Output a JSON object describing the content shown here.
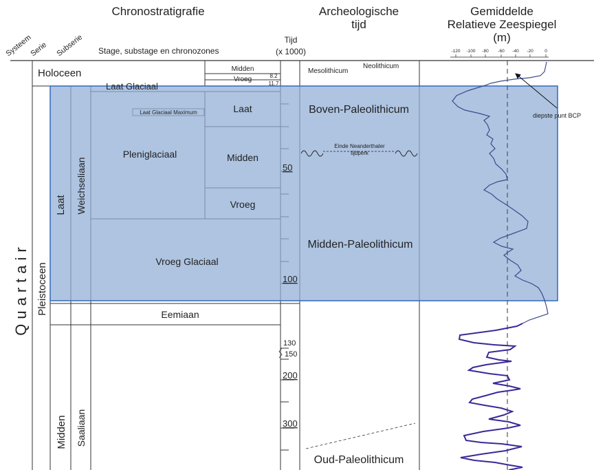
{
  "headers": {
    "chrono": "Chronostratigrafie",
    "archeo_line1": "Archeologische",
    "archeo_line2": "tijd",
    "sea_line1": "Gemiddelde",
    "sea_line2": "Relatieve Zeespiegel",
    "sea_line3": "(m)",
    "systeem": "Systeem",
    "serie": "Serie",
    "subserie": "Subserie",
    "stage": "Stage, substage en chronozones",
    "tijd_line1": "Tijd",
    "tijd_line2": "(x 1000)"
  },
  "sea_ticks": [
    "-120",
    "-100",
    "-80",
    "-60",
    "-40",
    "-20",
    "0"
  ],
  "units": {
    "quartair": "Quartair",
    "pleistoceen": "Pleistoceen",
    "holoceen": "Holoceen",
    "laat": "Laat",
    "midden_serie": "Midden",
    "weichseliaan": "Weichseliaan",
    "saaliaan": "Saaliaan",
    "eemiaan": "Eemiaan",
    "laat_glaciaal": "Laat Glaciaal",
    "lgm": "Laat Glaciaal Maximum",
    "pleniglaciaal": "Pleniglaciaal",
    "pleni_laat": "Laat",
    "pleni_midden": "Midden",
    "pleni_vroeg": "Vroeg",
    "vroeg_glaciaal": "Vroeg Glaciaal",
    "holo_midden": "Midden",
    "holo_vroeg": "Vroeg"
  },
  "time_labels": {
    "t82": "8.2",
    "t117": "11.7",
    "t50": "50",
    "t100": "100",
    "t130": "130",
    "t150": "150",
    "t200": "200",
    "t300": "300"
  },
  "archeo": {
    "mesolithicum": "Mesolithicum",
    "neolithicum": "Neolithicum",
    "boven": "Boven-Paleolithicum",
    "neanderthaler_line1": "Einde Neanderthaler",
    "neanderthaler_line2": "tijdperk",
    "midden": "Midden-Paleolithicum",
    "oud": "Oud-Paleolithicum"
  },
  "annotation": "diepste punt BCP",
  "colors": {
    "highlight": "#8fadd5",
    "highlight_border": "#3b6fbf",
    "curve_light": "#3c4a8c",
    "curve_dark": "#3a2898"
  }
}
